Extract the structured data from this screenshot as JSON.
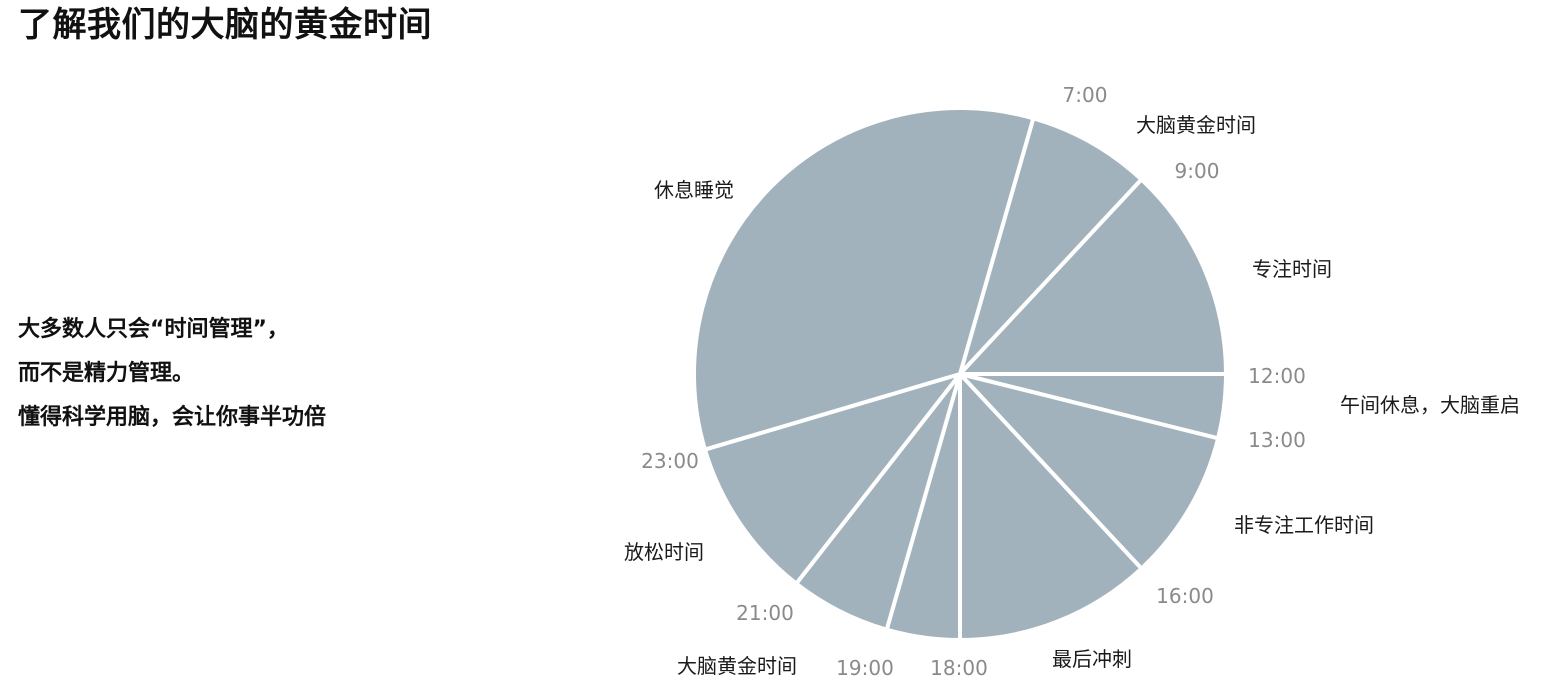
{
  "title": "了解我们的大脑的黄金时间",
  "side_text": [
    "大多数人只会“时间管理”，",
    "而不是精力管理。",
    "懂得科学用脑，会让你事半功倍"
  ],
  "chart_data": {
    "type": "pie",
    "unit": "hours",
    "slice_color": "#a2b2bc",
    "divider_color": "#ffffff",
    "time_label_color": "#8a8a8a",
    "segments": [
      {
        "label": "大脑黄金时间",
        "start": "7:00",
        "end": "9:00",
        "hours": 2
      },
      {
        "label": "专注时间",
        "start": "9:00",
        "end": "12:00",
        "hours": 3
      },
      {
        "label": "午间休息，大脑重启",
        "start": "12:00",
        "end": "13:00",
        "hours": 1
      },
      {
        "label": "非专注工作时间",
        "start": "13:00",
        "end": "16:00",
        "hours": 3
      },
      {
        "label": "最后冲刺",
        "start": "16:00",
        "end": "18:00",
        "hours": 2
      },
      {
        "label": "",
        "start": "18:00",
        "end": "19:00",
        "hours": 1
      },
      {
        "label": "大脑黄金时间",
        "start": "19:00",
        "end": "21:00",
        "hours": 2
      },
      {
        "label": "放松时间",
        "start": "21:00",
        "end": "23:00",
        "hours": 2
      },
      {
        "label": "休息睡觉",
        "start": "23:00",
        "end": "7:00",
        "hours": 8
      }
    ],
    "time_labels": [
      "7:00",
      "9:00",
      "12:00",
      "13:00",
      "16:00",
      "18:00",
      "19:00",
      "21:00",
      "23:00"
    ]
  }
}
